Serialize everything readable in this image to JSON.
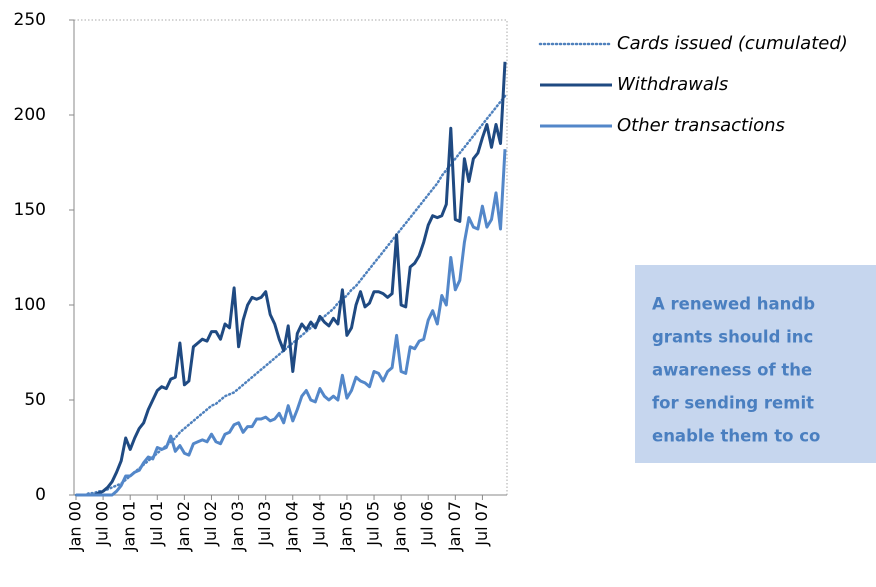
{
  "chart_data": {
    "type": "line",
    "categories": [
      "Jan 00",
      null,
      null,
      null,
      null,
      null,
      "Jul 00",
      null,
      null,
      null,
      null,
      null,
      "Jan 01",
      null,
      null,
      null,
      null,
      null,
      "Jul 01",
      null,
      null,
      null,
      null,
      null,
      "Jan 02",
      null,
      null,
      null,
      null,
      null,
      "Jul 02",
      null,
      null,
      null,
      null,
      null,
      "Jan 03",
      null,
      null,
      null,
      null,
      null,
      "Jul 03",
      null,
      null,
      null,
      null,
      null,
      "Jan 04",
      null,
      null,
      null,
      null,
      null,
      "Jul 04",
      null,
      null,
      null,
      null,
      null,
      "Jan 05",
      null,
      null,
      null,
      null,
      null,
      "Jul 05",
      null,
      null,
      null,
      null,
      null,
      "Jan 06",
      null,
      null,
      null,
      null,
      null,
      "Jul 06",
      null,
      null,
      null,
      null,
      null,
      "Jan 07",
      null,
      null,
      null,
      null,
      null,
      "Jul 07",
      null,
      null,
      null,
      null,
      null
    ],
    "series": [
      {
        "name": "Cards issued (cumulated)",
        "color": "#4f81bd",
        "line_style": "dotted",
        "values": [
          0,
          0,
          0,
          1,
          1,
          2,
          2,
          3,
          4,
          5,
          6,
          8,
          10,
          12,
          14,
          16,
          18,
          20,
          22,
          24,
          26,
          28,
          30,
          33,
          35,
          37,
          39,
          41,
          43,
          45,
          47,
          48,
          50,
          52,
          53,
          54,
          56,
          58,
          60,
          62,
          64,
          66,
          68,
          70,
          72,
          74,
          76,
          78,
          80,
          82,
          84,
          86,
          88,
          90,
          92,
          94,
          96,
          98,
          101,
          103,
          105,
          108,
          110,
          113,
          116,
          119,
          122,
          125,
          128,
          131,
          134,
          137,
          140,
          143,
          146,
          149,
          152,
          155,
          158,
          161,
          164,
          168,
          171,
          174,
          177,
          180,
          183,
          186,
          189,
          192,
          195,
          198,
          201,
          204,
          207,
          210
        ]
      },
      {
        "name": "Withdrawals",
        "color": "#1f4a82",
        "line_style": "solid",
        "values": [
          0,
          0,
          0,
          0,
          0,
          1,
          2,
          4,
          7,
          12,
          18,
          30,
          24,
          30,
          35,
          38,
          45,
          50,
          55,
          57,
          56,
          61,
          62,
          80,
          58,
          60,
          78,
          80,
          82,
          81,
          86,
          86,
          82,
          90,
          88,
          109,
          78,
          92,
          100,
          104,
          103,
          104,
          107,
          95,
          90,
          82,
          76,
          89,
          65,
          85,
          90,
          87,
          91,
          88,
          94,
          91,
          89,
          93,
          90,
          108,
          84,
          88,
          100,
          107,
          99,
          101,
          107,
          107,
          106,
          104,
          106,
          137,
          100,
          99,
          120,
          122,
          126,
          133,
          142,
          147,
          146,
          147,
          153,
          193,
          145,
          144,
          177,
          165,
          177,
          180,
          188,
          195,
          183,
          195,
          185,
          228
        ]
      },
      {
        "name": "Other transactions",
        "color": "#5387c9",
        "line_style": "solid",
        "values": [
          0,
          0,
          0,
          0,
          0,
          0,
          0,
          0,
          0,
          2,
          5,
          10,
          10,
          12,
          13,
          17,
          20,
          19,
          25,
          24,
          25,
          31,
          23,
          26,
          22,
          21,
          27,
          28,
          29,
          28,
          32,
          28,
          27,
          32,
          33,
          37,
          38,
          33,
          36,
          36,
          40,
          40,
          41,
          39,
          40,
          43,
          38,
          47,
          39,
          45,
          52,
          55,
          50,
          49,
          56,
          52,
          50,
          52,
          50,
          63,
          51,
          55,
          62,
          60,
          59,
          57,
          65,
          64,
          60,
          65,
          67,
          84,
          65,
          64,
          78,
          77,
          81,
          82,
          92,
          97,
          90,
          105,
          100,
          125,
          108,
          113,
          133,
          146,
          141,
          140,
          152,
          141,
          145,
          159,
          140,
          182
        ]
      }
    ],
    "ylim": [
      0,
      250
    ],
    "yticks": [
      0,
      50,
      100,
      150,
      200,
      250
    ]
  },
  "note": {
    "lines": [
      "A renewed handb",
      "grants should inc",
      "awareness of the",
      "for sending remit",
      "enable them to co"
    ]
  }
}
